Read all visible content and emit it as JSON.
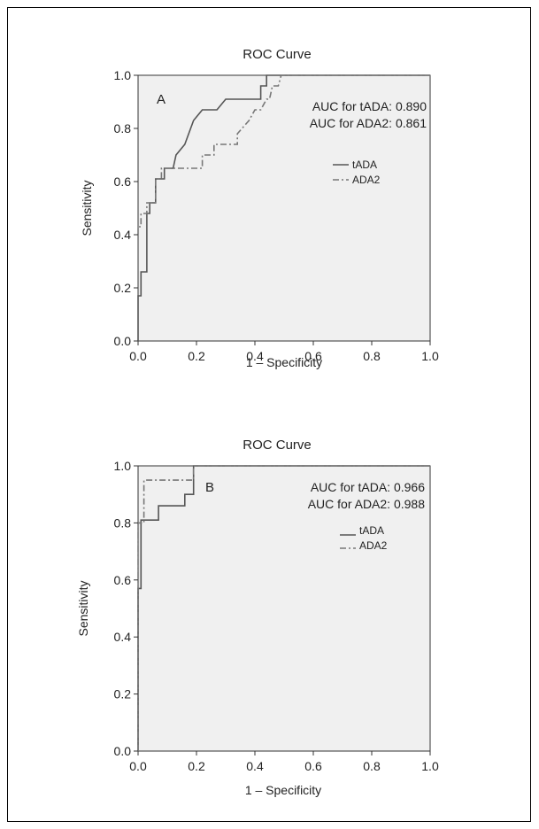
{
  "chart_data": [
    {
      "type": "line",
      "title": "ROC Curve",
      "panel_label": "A",
      "xlabel": "1 – Specificity",
      "ylabel": "Sensitivity",
      "xlim": [
        0.0,
        1.0
      ],
      "ylim": [
        0.0,
        1.0
      ],
      "xticks": [
        "0.0",
        "0.2",
        "0.4",
        "0.6",
        "0.8",
        "1.0"
      ],
      "yticks": [
        "0.0",
        "0.2",
        "0.4",
        "0.6",
        "0.8",
        "1.0"
      ],
      "grid": false,
      "legend_position": "right",
      "annotations": [
        "AUC for tADA: 0.890",
        "AUC for ADA2: 0.861"
      ],
      "series": [
        {
          "name": "tADA",
          "style": "solid",
          "color": "#555555",
          "x": [
            0,
            0,
            0.01,
            0.01,
            0.03,
            0.03,
            0.04,
            0.04,
            0.06,
            0.06,
            0.09,
            0.09,
            0.12,
            0.13,
            0.16,
            0.19,
            0.22,
            0.27,
            0.3,
            0.3,
            0.4,
            0.42,
            0.42,
            0.44,
            0.44,
            1.0
          ],
          "y": [
            0,
            0.17,
            0.17,
            0.26,
            0.26,
            0.48,
            0.48,
            0.52,
            0.52,
            0.61,
            0.61,
            0.65,
            0.65,
            0.7,
            0.74,
            0.83,
            0.87,
            0.87,
            0.91,
            0.91,
            0.91,
            0.91,
            0.96,
            0.96,
            1.0,
            1.0
          ]
        },
        {
          "name": "ADA2",
          "style": "dashdot",
          "color": "#777777",
          "x": [
            0,
            0,
            0.01,
            0.01,
            0.03,
            0.03,
            0.06,
            0.06,
            0.08,
            0.08,
            0.19,
            0.22,
            0.22,
            0.26,
            0.26,
            0.34,
            0.34,
            0.38,
            0.4,
            0.42,
            0.44,
            0.45,
            0.46,
            0.48,
            0.49,
            1.0
          ],
          "y": [
            0.4,
            0.43,
            0.43,
            0.48,
            0.48,
            0.52,
            0.52,
            0.61,
            0.61,
            0.65,
            0.65,
            0.65,
            0.7,
            0.7,
            0.74,
            0.74,
            0.78,
            0.83,
            0.87,
            0.87,
            0.91,
            0.91,
            0.96,
            0.96,
            1.0,
            1.0
          ]
        }
      ]
    },
    {
      "type": "line",
      "title": "ROC Curve",
      "panel_label": "B",
      "xlabel": "1 – Specificity",
      "ylabel": "Sensitivity",
      "xlim": [
        0.0,
        1.0
      ],
      "ylim": [
        0.0,
        1.0
      ],
      "xticks": [
        "0.0",
        "0.2",
        "0.4",
        "0.6",
        "0.8",
        "1.0"
      ],
      "yticks": [
        "0.0",
        "0.2",
        "0.4",
        "0.6",
        "0.8",
        "1.0"
      ],
      "grid": false,
      "legend_position": "right",
      "annotations": [
        "AUC for tADA: 0.966",
        "AUC for ADA2: 0.988"
      ],
      "series": [
        {
          "name": "tADA",
          "style": "solid",
          "color": "#555555",
          "x": [
            0,
            0,
            0.01,
            0.01,
            0.07,
            0.07,
            0.16,
            0.16,
            0.19,
            0.19,
            1.0
          ],
          "y": [
            0,
            0.57,
            0.57,
            0.81,
            0.81,
            0.86,
            0.86,
            0.9,
            0.9,
            1.0,
            1.0
          ],
          "_note": ""
        },
        {
          "name": "ADA2",
          "style": "dashdot",
          "color": "#777777",
          "x": [
            0,
            0,
            0.02,
            0.02,
            0.19,
            0.19,
            1.0
          ],
          "y": [
            0,
            0.8,
            0.8,
            0.95,
            0.95,
            1.0,
            1.0
          ]
        }
      ]
    }
  ]
}
